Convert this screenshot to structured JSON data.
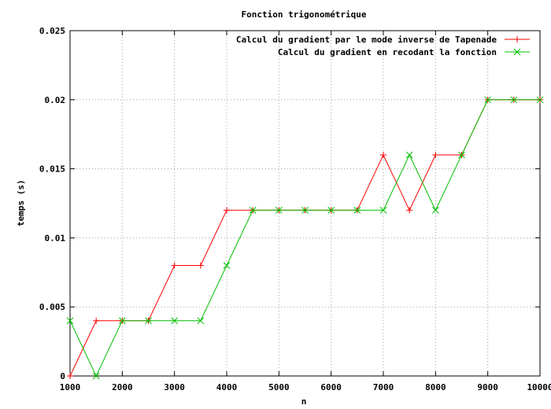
{
  "chart_data": {
    "type": "line",
    "title": "Fonction trigonométrique",
    "xlabel": "n",
    "ylabel": "temps (s)",
    "xlim": [
      1000,
      10000
    ],
    "ylim": [
      0,
      0.025
    ],
    "grid": true,
    "legend_position": "top-right",
    "x_ticks": [
      "1000",
      "2000",
      "3000",
      "4000",
      "5000",
      "6000",
      "7000",
      "8000",
      "9000",
      "10000"
    ],
    "y_ticks": [
      "0",
      "0.005",
      "0.01",
      "0.015",
      "0.02",
      "0.025"
    ],
    "x": [
      1000,
      1500,
      2000,
      2500,
      3000,
      3500,
      4000,
      4500,
      5000,
      5500,
      6000,
      6500,
      7000,
      7500,
      8000,
      8500,
      9000,
      9500,
      10000
    ],
    "series": [
      {
        "name": "Calcul du gradient par le mode inverse de Tapenade",
        "color": "#ff0000",
        "marker": "plus",
        "values": [
          0,
          0.004,
          0.004,
          0.004,
          0.008,
          0.008,
          0.012,
          0.012,
          0.012,
          0.012,
          0.012,
          0.012,
          0.016,
          0.012,
          0.016,
          0.016,
          0.02,
          0.02,
          0.02
        ]
      },
      {
        "name": "Calcul du gradient en recodant la fonction",
        "color": "#00c000",
        "marker": "cross",
        "values": [
          0.004,
          0,
          0.004,
          0.004,
          0.004,
          0.004,
          0.008,
          0.012,
          0.012,
          0.012,
          0.012,
          0.012,
          0.012,
          0.016,
          0.012,
          0.016,
          0.02,
          0.02,
          0.02
        ]
      }
    ]
  }
}
